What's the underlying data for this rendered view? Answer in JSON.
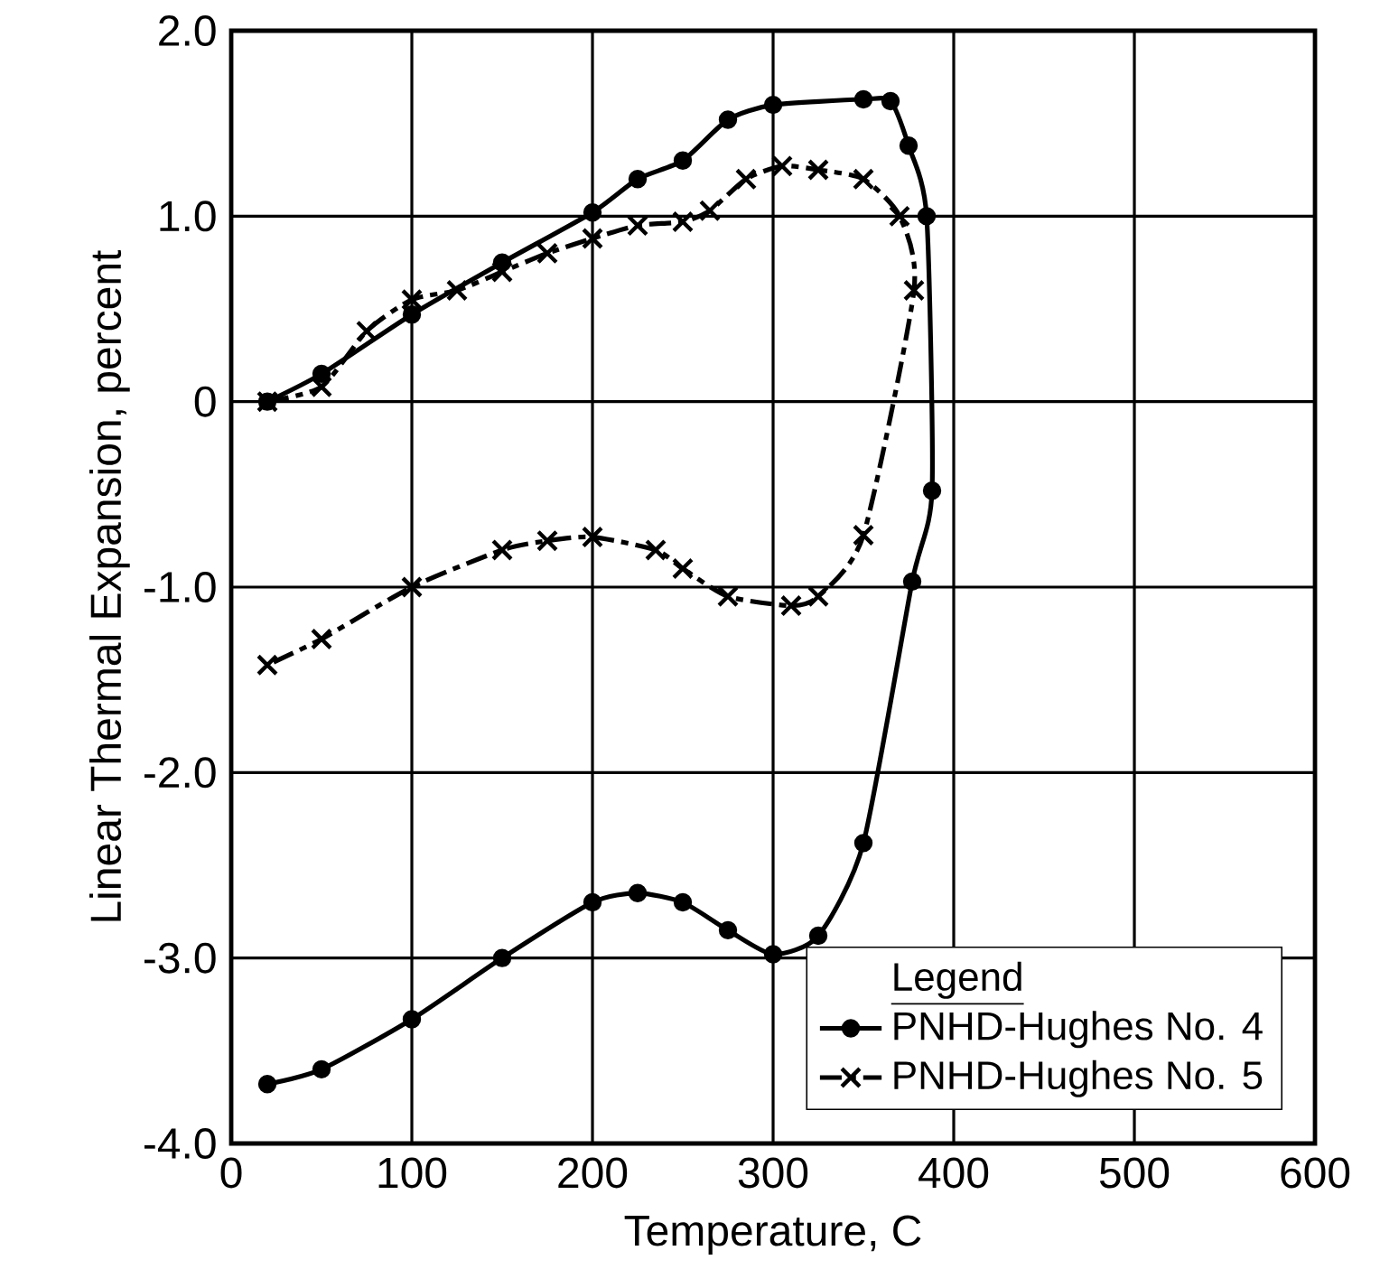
{
  "chart_data": {
    "type": "line",
    "xlabel": "Temperature, C",
    "ylabel": "Linear Thermal Expansion, percent",
    "legend_title": "Legend",
    "xlim": [
      0,
      600
    ],
    "ylim": [
      -4,
      2
    ],
    "xticks": [
      0,
      100,
      200,
      300,
      400,
      500,
      600
    ],
    "yticks": [
      {
        "value": -4,
        "label": "-4.0"
      },
      {
        "value": -3,
        "label": "-3.0"
      },
      {
        "value": -2,
        "label": "-2.0"
      },
      {
        "value": -1,
        "label": "-1.0"
      },
      0,
      {
        "value": 1,
        "label": "1.0"
      },
      {
        "value": 2,
        "label": "2.0"
      }
    ],
    "grid": true,
    "legend": "bottom right",
    "series": [
      {
        "name": "PNHD-Hughes No. 4",
        "color": "#000000",
        "marker": "circle",
        "line_style": "solid",
        "x": [
          20,
          50,
          100,
          150,
          200,
          225,
          250,
          275,
          300,
          350,
          365,
          375,
          385,
          388,
          377,
          350,
          325,
          300,
          275,
          250,
          225,
          200,
          150,
          100,
          50,
          20
        ],
        "values": [
          0,
          0.15,
          0.47,
          0.75,
          1.02,
          1.2,
          1.3,
          1.52,
          1.6,
          1.63,
          1.62,
          1.38,
          1.0,
          -0.48,
          -0.97,
          -2.38,
          -2.88,
          -2.98,
          -2.85,
          -2.7,
          -2.65,
          -2.7,
          -3.0,
          -3.33,
          -3.6,
          -3.68
        ]
      },
      {
        "name": "PNHD-Hughes No. 5",
        "color": "#000000",
        "marker": "cross",
        "line_style": "dashed",
        "x": [
          20,
          50,
          75,
          100,
          125,
          150,
          175,
          200,
          225,
          250,
          265,
          285,
          305,
          325,
          350,
          370,
          378,
          350,
          325,
          310,
          275,
          250,
          235,
          200,
          175,
          150,
          100,
          50,
          20
        ],
        "values": [
          0,
          0.08,
          0.38,
          0.55,
          0.6,
          0.7,
          0.8,
          0.88,
          0.95,
          0.97,
          1.03,
          1.2,
          1.27,
          1.25,
          1.2,
          1.0,
          0.6,
          -0.72,
          -1.05,
          -1.1,
          -1.05,
          -0.9,
          -0.8,
          -0.73,
          -0.75,
          -0.8,
          -1.0,
          -1.28,
          -1.42
        ]
      }
    ]
  }
}
